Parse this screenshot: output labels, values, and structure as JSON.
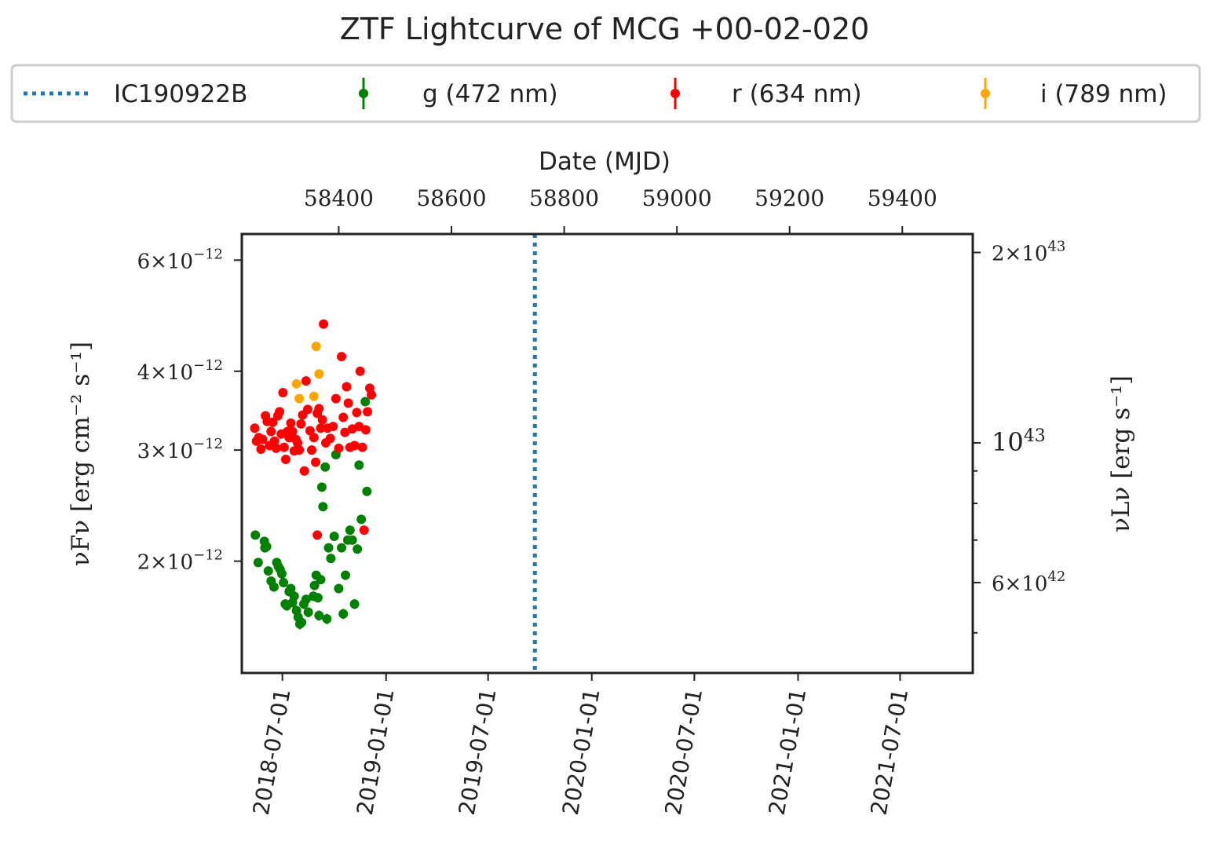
{
  "chart_data": {
    "type": "scatter",
    "title": "ZTF Lightcurve of MCG +00-02-020",
    "top_xlabel": "Date (MJD)",
    "ylabel_left": "νFν [erg cm⁻² s⁻¹]",
    "ylabel_right": "νLν [erg s⁻¹]",
    "y_scale": "log",
    "ylim": [
      1.33e-12,
      6.6e-12
    ],
    "xlim_mjd": [
      58228,
      59525
    ],
    "bottom_ticks": [
      {
        "label": "2018-07-01",
        "mjd": 58300
      },
      {
        "label": "2019-01-01",
        "mjd": 58484
      },
      {
        "label": "2019-07-01",
        "mjd": 58665
      },
      {
        "label": "2020-01-01",
        "mjd": 58849
      },
      {
        "label": "2020-07-01",
        "mjd": 59031
      },
      {
        "label": "2021-01-01",
        "mjd": 59215
      },
      {
        "label": "2021-07-01",
        "mjd": 59396
      }
    ],
    "top_ticks": [
      {
        "label": "58400",
        "mjd": 58400
      },
      {
        "label": "58600",
        "mjd": 58600
      },
      {
        "label": "58800",
        "mjd": 58800
      },
      {
        "label": "59000",
        "mjd": 59000
      },
      {
        "label": "59200",
        "mjd": 59200
      },
      {
        "label": "59400",
        "mjd": 59400
      }
    ],
    "left_ticks": [
      {
        "value": 2e-12,
        "mant": "2",
        "exp": "−12"
      },
      {
        "value": 3e-12,
        "mant": "3",
        "exp": "−12"
      },
      {
        "value": 4e-12,
        "mant": "4",
        "exp": "−12"
      },
      {
        "value": 6e-12,
        "mant": "6",
        "exp": "−12"
      }
    ],
    "right_ticks": [
      {
        "value": 1.85e-12,
        "mant": "6",
        "exp": "42"
      },
      {
        "value": 3.08e-12,
        "mant": "",
        "exp": "43"
      },
      {
        "value": 6.17e-12,
        "mant": "2",
        "exp": "43"
      }
    ],
    "right_minor_ticks": [
      1.54e-12,
      2.16e-12,
      2.47e-12,
      2.78e-12
    ],
    "event_line": {
      "name": "IC190922B",
      "mjd": 58748,
      "color": "#1f77b4"
    },
    "legend": {
      "placement": "top, above axes",
      "entries": [
        {
          "label": "IC190922B",
          "color": "#1f77b4",
          "kind": "line"
        },
        {
          "label": "g (472 nm)",
          "color": "#008000",
          "kind": "errorbar"
        },
        {
          "label": "r (634 nm)",
          "color": "#ff0000",
          "kind": "errorbar"
        },
        {
          "label": "i (789 nm)",
          "color": "#ffa500",
          "kind": "errorbar"
        }
      ]
    },
    "series": [
      {
        "name": "g (472 nm)",
        "color": "#008000",
        "error": 3e-14,
        "points": [
          [
            58252,
            2.2e-12
          ],
          [
            58257,
            1.99e-12
          ],
          [
            58268,
            2.15e-12
          ],
          [
            58269,
            2.1e-12
          ],
          [
            58272,
            2.11e-12
          ],
          [
            58275,
            1.93e-12
          ],
          [
            58280,
            1.86e-12
          ],
          [
            58285,
            1.82e-12
          ],
          [
            58290,
            1.99e-12
          ],
          [
            58293,
            1.96e-12
          ],
          [
            58296,
            1.94e-12
          ],
          [
            58299,
            1.91e-12
          ],
          [
            58302,
            1.85e-12
          ],
          [
            58305,
            1.71e-12
          ],
          [
            58308,
            1.7e-12
          ],
          [
            58312,
            1.79e-12
          ],
          [
            58315,
            1.81e-12
          ],
          [
            58318,
            1.72e-12
          ],
          [
            58321,
            1.76e-12
          ],
          [
            58325,
            1.67e-12
          ],
          [
            58328,
            1.63e-12
          ],
          [
            58331,
            1.59e-12
          ],
          [
            58334,
            1.6e-12
          ],
          [
            58338,
            1.71e-12
          ],
          [
            58342,
            1.74e-12
          ],
          [
            58346,
            1.66e-12
          ],
          [
            58355,
            1.76e-12
          ],
          [
            58357,
            1.83e-12
          ],
          [
            58360,
            1.9e-12
          ],
          [
            58363,
            1.75e-12
          ],
          [
            58365,
            1.64e-12
          ],
          [
            58368,
            1.87e-12
          ],
          [
            58370,
            2.62e-12
          ],
          [
            58372,
            2.44e-12
          ],
          [
            58376,
            2.82e-12
          ],
          [
            58379,
            1.62e-12
          ],
          [
            58382,
            2.1e-12
          ],
          [
            58386,
            2.02e-12
          ],
          [
            58392,
            2.19e-12
          ],
          [
            58395,
            2.95e-12
          ],
          [
            58400,
            1.81e-12
          ],
          [
            58405,
            2.1e-12
          ],
          [
            58408,
            1.65e-12
          ],
          [
            58412,
            1.9e-12
          ],
          [
            58416,
            2.16e-12
          ],
          [
            58420,
            2.24e-12
          ],
          [
            58424,
            2.16e-12
          ],
          [
            58428,
            1.71e-12
          ],
          [
            58433,
            2.09e-12
          ],
          [
            58436,
            2.84e-12
          ],
          [
            58440,
            2.33e-12
          ],
          [
            58447,
            3.58e-12
          ],
          [
            58450,
            2.58e-12
          ]
        ]
      },
      {
        "name": "r (634 nm)",
        "color": "#ff0000",
        "error": 3e-14,
        "points": [
          [
            58251,
            3.25e-12
          ],
          [
            58254,
            3.1e-12
          ],
          [
            58258,
            3.14e-12
          ],
          [
            58262,
            3.01e-12
          ],
          [
            58265,
            3.12e-12
          ],
          [
            58270,
            3.4e-12
          ],
          [
            58273,
            3.33e-12
          ],
          [
            58277,
            3.05e-12
          ],
          [
            58280,
            3.21e-12
          ],
          [
            58283,
            3.32e-12
          ],
          [
            58286,
            3.1e-12
          ],
          [
            58289,
            3.02e-12
          ],
          [
            58292,
            3.4e-12
          ],
          [
            58295,
            3.45e-12
          ],
          [
            58298,
            3.18e-12
          ],
          [
            58301,
            3.7e-12
          ],
          [
            58303,
            3.03e-12
          ],
          [
            58306,
            2.9e-12
          ],
          [
            58309,
            3.21e-12
          ],
          [
            58312,
            3.14e-12
          ],
          [
            58315,
            3.31e-12
          ],
          [
            58318,
            3.21e-12
          ],
          [
            58321,
            2.99e-12
          ],
          [
            58324,
            3.12e-12
          ],
          [
            58327,
            3.08e-12
          ],
          [
            58330,
            3e-12
          ],
          [
            58333,
            3.3e-12
          ],
          [
            58336,
            3.41e-12
          ],
          [
            58339,
            2.78e-12
          ],
          [
            58342,
            3.86e-12
          ],
          [
            58345,
            3.48e-12
          ],
          [
            58349,
            3.22e-12
          ],
          [
            58352,
            3e-12
          ],
          [
            58356,
            3.14e-12
          ],
          [
            58359,
            2.87e-12
          ],
          [
            58362,
            3.43e-12
          ],
          [
            58365,
            3.49e-12
          ],
          [
            58368,
            3.25e-12
          ],
          [
            58371,
            3.35e-12
          ],
          [
            58373,
            4.75e-12
          ],
          [
            58377,
            3.08e-12
          ],
          [
            58380,
            3.25e-12
          ],
          [
            58385,
            3.13e-12
          ],
          [
            58390,
            3.27e-12
          ],
          [
            58395,
            3.62e-12
          ],
          [
            58400,
            3.02e-12
          ],
          [
            58405,
            4.22e-12
          ],
          [
            58408,
            3.38e-12
          ],
          [
            58411,
            3.2e-12
          ],
          [
            58414,
            3.78e-12
          ],
          [
            58417,
            3.56e-12
          ],
          [
            58420,
            3.03e-12
          ],
          [
            58424,
            3.24e-12
          ],
          [
            58428,
            3.05e-12
          ],
          [
            58432,
            3.44e-12
          ],
          [
            58436,
            3.27e-12
          ],
          [
            58438,
            4e-12
          ],
          [
            58442,
            3.03e-12
          ],
          [
            58445,
            2.24e-12
          ],
          [
            58448,
            3.23e-12
          ],
          [
            58451,
            3.45e-12
          ],
          [
            58455,
            3.76e-12
          ],
          [
            58458,
            3.67e-12
          ],
          [
            58362,
            2.2e-12
          ]
        ]
      },
      {
        "name": "i (789 nm)",
        "color": "#ffa500",
        "error": 2e-14,
        "points": [
          [
            58325,
            3.82e-12
          ],
          [
            58330,
            3.62e-12
          ],
          [
            58356,
            3.65e-12
          ],
          [
            58360,
            4.38e-12
          ],
          [
            58365,
            3.96e-12
          ]
        ]
      }
    ]
  }
}
